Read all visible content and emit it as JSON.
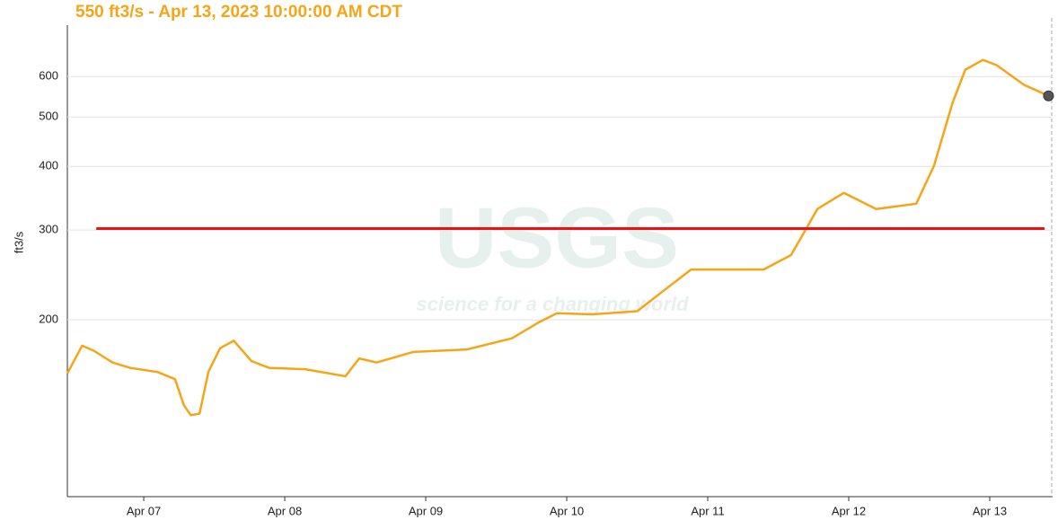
{
  "chart_data": {
    "type": "line",
    "title": "550 ft3/s - Apr 13, 2023 10:00:00 AM CDT",
    "ylabel": "ft3/s",
    "watermark": {
      "logo": "USGS",
      "tagline": "science for a changing world"
    },
    "log_y": true,
    "grid": true,
    "ylim": [
      90,
      760
    ],
    "yticks": [
      200,
      300,
      400,
      500,
      600
    ],
    "xlim": [
      "2023-04-06T11:00",
      "2023-04-13T10:42"
    ],
    "xticks": [
      {
        "value": "2023-04-07T00:00",
        "label": "Apr 07"
      },
      {
        "value": "2023-04-08T00:00",
        "label": "Apr 08"
      },
      {
        "value": "2023-04-09T00:00",
        "label": "Apr 09"
      },
      {
        "value": "2023-04-10T00:00",
        "label": "Apr 10"
      },
      {
        "value": "2023-04-11T00:00",
        "label": "Apr 11"
      },
      {
        "value": "2023-04-12T00:00",
        "label": "Apr 12"
      },
      {
        "value": "2023-04-13T00:00",
        "label": "Apr 13"
      }
    ],
    "series": [
      {
        "color": "#f5a516",
        "x": [
          "2023-04-06T11:00",
          "2023-04-06T13:30",
          "2023-04-06T15:30",
          "2023-04-06T18:40",
          "2023-04-06T21:40",
          "2023-04-07T02:20",
          "2023-04-07T05:20",
          "2023-04-07T06:50",
          "2023-04-07T08:00",
          "2023-04-07T09:30",
          "2023-04-07T11:00",
          "2023-04-07T13:00",
          "2023-04-07T15:20",
          "2023-04-07T18:20",
          "2023-04-07T21:20",
          "2023-04-08T03:30",
          "2023-04-08T10:20",
          "2023-04-08T12:40",
          "2023-04-08T15:40",
          "2023-04-08T21:50",
          "2023-04-09T07:00",
          "2023-04-09T14:40",
          "2023-04-09T19:20",
          "2023-04-09T22:20",
          "2023-04-10T04:20",
          "2023-04-10T12:00",
          "2023-04-10T16:40",
          "2023-04-10T21:10",
          "2023-04-11T01:50",
          "2023-04-11T09:30",
          "2023-04-11T14:10",
          "2023-04-11T16:20",
          "2023-04-11T18:40",
          "2023-04-11T23:10",
          "2023-04-12T04:40",
          "2023-04-12T11:30",
          "2023-04-12T14:30",
          "2023-04-12T17:40",
          "2023-04-12T19:50",
          "2023-04-12T22:50",
          "2023-04-13T01:10",
          "2023-04-13T05:50",
          "2023-04-13T10:00"
        ],
        "values": [
          157,
          178,
          174,
          165,
          161,
          158,
          153,
          136,
          130,
          131,
          158,
          176,
          182,
          166,
          161,
          160,
          155,
          168,
          165,
          173,
          175,
          184,
          198,
          206,
          205,
          208,
          229,
          251,
          251,
          251,
          268,
          296,
          330,
          355,
          330,
          338,
          401,
          533,
          619,
          647,
          632,
          578,
          550
        ]
      },
      {
        "color": "#ee1111",
        "x": [
          "2023-04-06T15:55",
          "2023-04-13T09:20"
        ],
        "values": [
          302,
          302
        ]
      }
    ]
  }
}
